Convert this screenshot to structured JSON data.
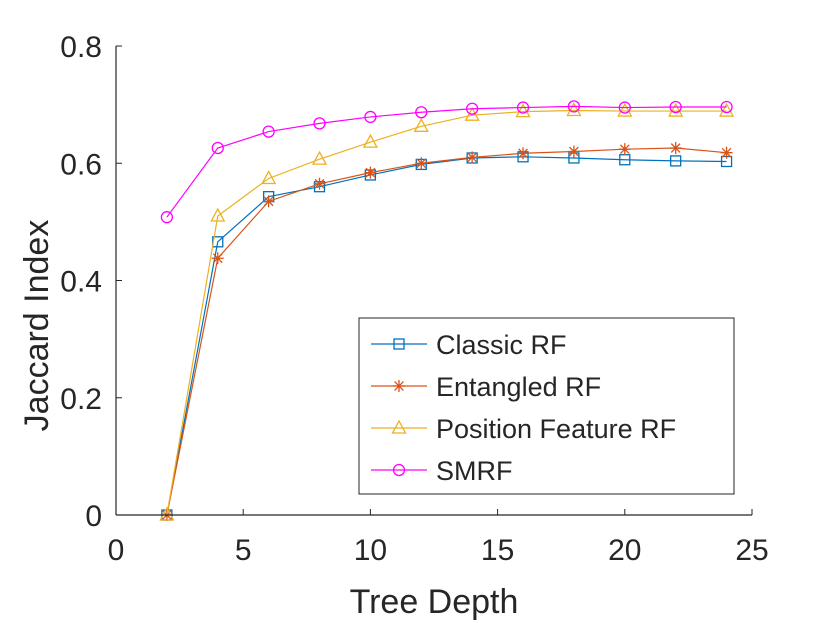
{
  "chart_data": {
    "type": "line",
    "title": "",
    "xlabel": "Tree Depth",
    "ylabel": "Jaccard Index",
    "xlim": [
      0,
      25
    ],
    "ylim": [
      0,
      0.8
    ],
    "xticks": [
      0,
      5,
      10,
      15,
      20,
      25
    ],
    "yticks": [
      0,
      0.2,
      0.4,
      0.6,
      0.8
    ],
    "xtick_labels": [
      "0",
      "5",
      "10",
      "15",
      "20",
      "25"
    ],
    "ytick_labels": [
      "0",
      "0.2",
      "0.4",
      "0.6",
      "0.8"
    ],
    "grid": false,
    "legend_position": "bottom-right",
    "x": [
      2,
      4,
      6,
      8,
      10,
      12,
      14,
      16,
      18,
      20,
      22,
      24
    ],
    "series": [
      {
        "name": "Classic RF",
        "marker": "square",
        "color": "#0072BD",
        "values": [
          0.0,
          0.466,
          0.543,
          0.56,
          0.58,
          0.598,
          0.609,
          0.611,
          0.609,
          0.606,
          0.604,
          0.603
        ]
      },
      {
        "name": "Entangled RF",
        "marker": "asterisk",
        "color": "#D95319",
        "values": [
          0.0,
          0.438,
          0.535,
          0.565,
          0.584,
          0.6,
          0.61,
          0.617,
          0.62,
          0.624,
          0.626,
          0.618
        ]
      },
      {
        "name": "Position Feature RF",
        "marker": "triangle",
        "color": "#EDB120",
        "values": [
          0.0,
          0.51,
          0.574,
          0.607,
          0.636,
          0.663,
          0.682,
          0.688,
          0.69,
          0.689,
          0.689,
          0.689
        ]
      },
      {
        "name": "SMRF",
        "marker": "circle",
        "color": "#FF00FF",
        "values": [
          0.508,
          0.626,
          0.654,
          0.668,
          0.679,
          0.687,
          0.693,
          0.695,
          0.697,
          0.695,
          0.696,
          0.696
        ]
      }
    ]
  }
}
